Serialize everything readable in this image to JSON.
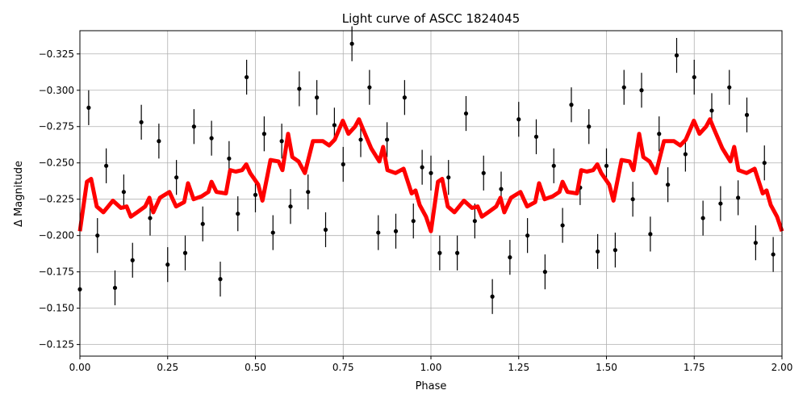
{
  "chart_data": {
    "type": "scatter",
    "title": "Light curve of ASCC 1824045",
    "xlabel": "Phase",
    "ylabel": "Δ Magnitude",
    "xlim": [
      0.0,
      2.0
    ],
    "ylim": [
      -0.341,
      -0.117
    ],
    "y_inverted": true,
    "grid": true,
    "xticks": [
      "0.00",
      "0.25",
      "0.50",
      "0.75",
      "1.00",
      "1.25",
      "1.50",
      "1.75",
      "2.00"
    ],
    "xtick_values": [
      0,
      0.25,
      0.5,
      0.75,
      1.0,
      1.25,
      1.5,
      1.75,
      2.0
    ],
    "yticks": [
      "−0.325",
      "−0.300",
      "−0.275",
      "−0.250",
      "−0.225",
      "−0.200",
      "−0.175",
      "−0.150",
      "−0.125"
    ],
    "ytick_values": [
      -0.325,
      -0.3,
      -0.275,
      -0.25,
      -0.225,
      -0.2,
      -0.175,
      -0.15,
      -0.125
    ],
    "observations": {
      "color": "#000000",
      "yerr": 0.012,
      "phase": [
        0,
        0.025,
        0.05,
        0.075,
        0.1,
        0.125,
        0.15,
        0.175,
        0.2,
        0.225,
        0.25,
        0.275,
        0.3,
        0.325,
        0.35,
        0.375,
        0.4,
        0.425,
        0.45,
        0.475,
        0.5,
        0.525,
        0.55,
        0.575,
        0.6,
        0.625,
        0.65,
        0.675,
        0.7,
        0.725,
        0.75,
        0.775,
        0.8,
        0.825,
        0.85,
        0.875,
        0.9,
        0.925,
        0.95,
        0.975,
        1.0,
        1.025,
        1.05,
        1.075,
        1.1,
        1.125,
        1.15,
        1.175,
        1.2,
        1.225,
        1.25,
        1.275,
        1.3,
        1.325,
        1.35,
        1.375,
        1.4,
        1.425,
        1.45,
        1.475,
        1.5,
        1.525,
        1.55,
        1.575,
        1.6,
        1.625,
        1.65,
        1.675,
        1.7,
        1.725,
        1.75,
        1.775,
        1.8,
        1.825,
        1.85,
        1.875,
        1.9,
        1.925,
        1.95,
        1.975
      ],
      "mag": [
        -0.163,
        -0.288,
        -0.2,
        -0.248,
        -0.164,
        -0.23,
        -0.183,
        -0.278,
        -0.212,
        -0.265,
        -0.18,
        -0.24,
        -0.188,
        -0.275,
        -0.208,
        -0.267,
        -0.17,
        -0.253,
        -0.215,
        -0.309,
        -0.228,
        -0.27,
        -0.202,
        -0.265,
        -0.22,
        -0.301,
        -0.23,
        -0.295,
        -0.204,
        -0.276,
        -0.249,
        -0.332,
        -0.266,
        -0.302,
        -0.202,
        -0.266,
        -0.203,
        -0.295,
        -0.21,
        -0.247,
        -0.243,
        -0.188,
        -0.24,
        -0.188,
        -0.284,
        -0.21,
        -0.243,
        -0.158,
        -0.232,
        -0.185,
        -0.28,
        -0.2,
        -0.268,
        -0.175,
        -0.248,
        -0.207,
        -0.29,
        -0.233,
        -0.275,
        -0.189,
        -0.248,
        -0.19,
        -0.302,
        -0.225,
        -0.3,
        -0.201,
        -0.27,
        -0.235,
        -0.324,
        -0.256,
        -0.309,
        -0.212,
        -0.286,
        -0.222,
        -0.302,
        -0.226,
        -0.283,
        -0.195,
        -0.25,
        -0.187
      ]
    },
    "model": {
      "color": "#ff0000",
      "phase": [
        0,
        0.02,
        0.032,
        0.048,
        0.067,
        0.094,
        0.117,
        0.133,
        0.145,
        0.163,
        0.186,
        0.198,
        0.209,
        0.228,
        0.255,
        0.274,
        0.297,
        0.308,
        0.324,
        0.347,
        0.366,
        0.375,
        0.389,
        0.416,
        0.428,
        0.444,
        0.462,
        0.474,
        0.485,
        0.508,
        0.52,
        0.543,
        0.566,
        0.577,
        0.593,
        0.605,
        0.623,
        0.641,
        0.664,
        0.692,
        0.71,
        0.726,
        0.749,
        0.765,
        0.784,
        0.795,
        0.807,
        0.83,
        0.853,
        0.864,
        0.876,
        0.899,
        0.922,
        0.945,
        0.956,
        0.968,
        0.986,
        1.0,
        1.02,
        1.032,
        1.048,
        1.067,
        1.094,
        1.117,
        1.133,
        1.145,
        1.163,
        1.186,
        1.198,
        1.209,
        1.228,
        1.255,
        1.274,
        1.297,
        1.308,
        1.324,
        1.347,
        1.366,
        1.375,
        1.389,
        1.416,
        1.428,
        1.444,
        1.462,
        1.474,
        1.485,
        1.508,
        1.52,
        1.543,
        1.566,
        1.577,
        1.593,
        1.605,
        1.623,
        1.641,
        1.664,
        1.692,
        1.71,
        1.726,
        1.749,
        1.765,
        1.784,
        1.795,
        1.807,
        1.83,
        1.853,
        1.864,
        1.876,
        1.899,
        1.922,
        1.945,
        1.956,
        1.968,
        1.986,
        2.0
      ],
      "mag": [
        -0.203,
        -0.237,
        -0.239,
        -0.22,
        -0.216,
        -0.224,
        -0.219,
        -0.22,
        -0.213,
        -0.216,
        -0.22,
        -0.226,
        -0.216,
        -0.226,
        -0.23,
        -0.22,
        -0.223,
        -0.236,
        -0.225,
        -0.227,
        -0.23,
        -0.237,
        -0.23,
        -0.229,
        -0.245,
        -0.244,
        -0.245,
        -0.249,
        -0.243,
        -0.235,
        -0.224,
        -0.252,
        -0.251,
        -0.245,
        -0.27,
        -0.254,
        -0.251,
        -0.243,
        -0.265,
        -0.265,
        -0.262,
        -0.266,
        -0.279,
        -0.27,
        -0.275,
        -0.28,
        -0.273,
        -0.26,
        -0.251,
        -0.261,
        -0.245,
        -0.243,
        -0.246,
        -0.229,
        -0.231,
        -0.221,
        -0.213,
        -0.203,
        -0.237,
        -0.239,
        -0.22,
        -0.216,
        -0.224,
        -0.219,
        -0.22,
        -0.213,
        -0.216,
        -0.22,
        -0.226,
        -0.216,
        -0.226,
        -0.23,
        -0.22,
        -0.223,
        -0.236,
        -0.225,
        -0.227,
        -0.23,
        -0.237,
        -0.23,
        -0.229,
        -0.245,
        -0.244,
        -0.245,
        -0.249,
        -0.243,
        -0.235,
        -0.224,
        -0.252,
        -0.251,
        -0.245,
        -0.27,
        -0.254,
        -0.251,
        -0.243,
        -0.265,
        -0.265,
        -0.262,
        -0.266,
        -0.279,
        -0.27,
        -0.275,
        -0.28,
        -0.273,
        -0.26,
        -0.251,
        -0.261,
        -0.245,
        -0.243,
        -0.246,
        -0.229,
        -0.231,
        -0.221,
        -0.213,
        -0.203
      ]
    }
  }
}
